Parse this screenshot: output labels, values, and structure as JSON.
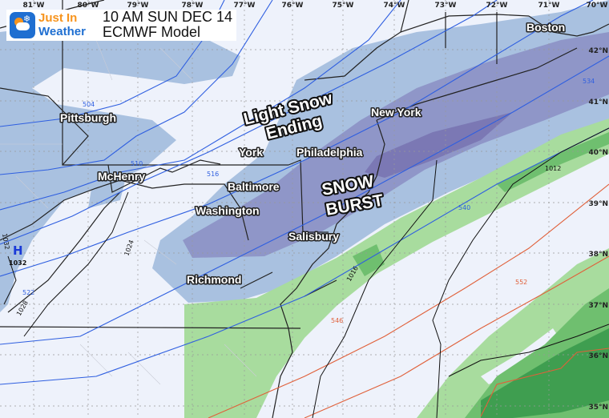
{
  "header": {
    "logo_line1": "Just In",
    "logo_line2": "Weather",
    "title_line1": "10 AM SUN DEC 14",
    "title_line2": "ECMWF Model"
  },
  "longitudes": [
    "81°W",
    "80°W",
    "79°W",
    "78°W",
    "77°W",
    "76°W",
    "75°W",
    "74°W",
    "73°W",
    "72°W",
    "71°W",
    "70°W"
  ],
  "latitudes": [
    "42°N",
    "41°N",
    "40°N",
    "39°N",
    "38°N",
    "37°N",
    "36°N",
    "35°N"
  ],
  "cities": {
    "pittsburgh": "Pittsburgh",
    "mchenry": "McHenry",
    "york": "York",
    "philadelphia": "Philadelphia",
    "baltimore": "Baltimore",
    "washington": "Washington",
    "salisbury": "Salisbury",
    "richmond": "Richmond",
    "new_york": "New York",
    "boston": "Boston"
  },
  "annotations": {
    "light_snow_1": "Light Snow",
    "light_snow_2": "Ending",
    "snow_burst_1": "SNOW",
    "snow_burst_2": "BURST"
  },
  "pressure_center": {
    "symbol": "H",
    "value": "1032"
  },
  "contour_labels": {
    "thickness_blue": [
      "504",
      "510",
      "516",
      "522",
      "534",
      "540"
    ],
    "thickness_red": [
      "546",
      "552"
    ],
    "isobars": [
      "1012",
      "1016",
      "1024",
      "1028",
      "1032"
    ]
  },
  "colors": {
    "no_precip": "#eef2fb",
    "light_snow": "#a9c1e0",
    "moderate_snow": "#8f96c8",
    "heavy_snow": "#7b78b4",
    "light_rain": "#a8dc9e",
    "moderate_rain": "#6fbf6f",
    "heavy_rain": "#3f9e50",
    "thickness_cold": "#2f5fe0",
    "thickness_warm": "#e0603a",
    "isobar": "#111111",
    "logo_blue": "#1f6fd1",
    "logo_orange": "#f7941d"
  }
}
